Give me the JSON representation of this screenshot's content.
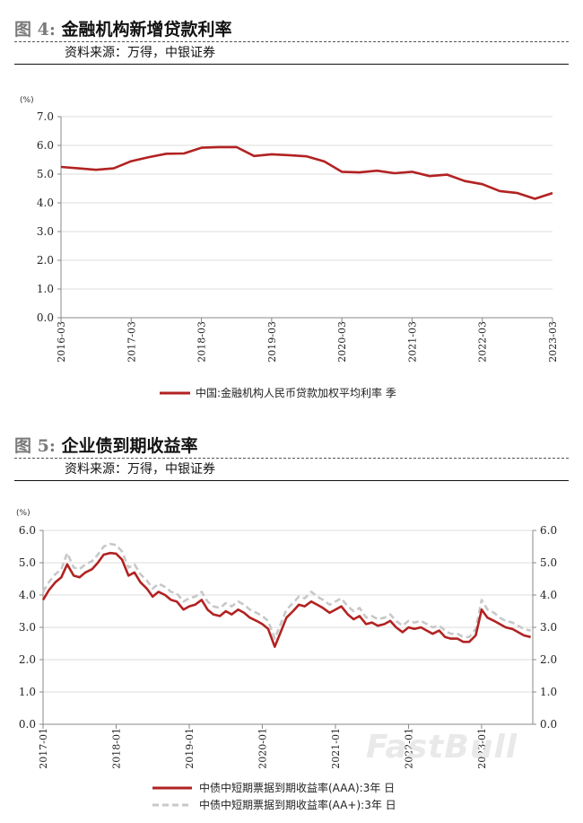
{
  "figure4": {
    "number": "图 4:",
    "title": "金融机构新增贷款利率",
    "source": "资料来源：万得，中银证券",
    "chart_data": {
      "type": "line",
      "ylabel": "(%)",
      "ylim": [
        0,
        7
      ],
      "yticks": [
        "0.0",
        "1.0",
        "2.0",
        "3.0",
        "4.0",
        "5.0",
        "6.0",
        "7.0"
      ],
      "xticks": [
        "2016-03",
        "2017-03",
        "2018-03",
        "2019-03",
        "2020-03",
        "2021-03",
        "2022-03",
        "2023-03"
      ],
      "x_start": 2016.167,
      "x_end": 2023.167,
      "grid": true,
      "legend_position": "bottom",
      "series": [
        {
          "name": "中国:金融机构人民币贷款加权平均利率 季",
          "color": "#b22222",
          "x": [
            2016.167,
            2016.417,
            2016.667,
            2016.917,
            2017.167,
            2017.417,
            2017.667,
            2017.917,
            2018.167,
            2018.417,
            2018.667,
            2018.917,
            2019.167,
            2019.417,
            2019.667,
            2019.917,
            2020.167,
            2020.417,
            2020.667,
            2020.917,
            2021.167,
            2021.417,
            2021.667,
            2021.917,
            2022.167,
            2022.417,
            2022.667,
            2022.917,
            2023.167
          ],
          "values": [
            5.25,
            5.2,
            5.15,
            5.2,
            5.45,
            5.59,
            5.71,
            5.72,
            5.92,
            5.94,
            5.94,
            5.63,
            5.69,
            5.66,
            5.62,
            5.44,
            5.08,
            5.06,
            5.12,
            5.03,
            5.08,
            4.93,
            4.98,
            4.76,
            4.65,
            4.41,
            4.34,
            4.14,
            4.34
          ]
        }
      ]
    }
  },
  "figure5": {
    "number": "图 5:",
    "title": "企业债到期收益率",
    "source": "资料来源：万得，中银证券",
    "chart_data": {
      "type": "line",
      "ylabel": "(%)",
      "ylim": [
        0,
        6
      ],
      "yticks": [
        "0.0",
        "1.0",
        "2.0",
        "3.0",
        "4.0",
        "5.0",
        "6.0"
      ],
      "y2ticks": [
        "0.0",
        "1.0",
        "2.0",
        "3.0",
        "4.0",
        "5.0",
        "6.0"
      ],
      "xticks": [
        "2017-01",
        "2018-01",
        "2019-01",
        "2020-01",
        "2021-01",
        "2022-01",
        "2023-01"
      ],
      "x_start": 2017.0,
      "x_end": 2023.7,
      "grid": true,
      "legend_position": "bottom",
      "series": [
        {
          "name": "中债中短期票据到期收益率(AAA):3年  日",
          "color": "#b22222",
          "style": "solid",
          "x": [
            2017.0,
            2017.08,
            2017.17,
            2017.25,
            2017.33,
            2017.42,
            2017.5,
            2017.58,
            2017.67,
            2017.75,
            2017.83,
            2017.92,
            2018.0,
            2018.08,
            2018.17,
            2018.25,
            2018.33,
            2018.42,
            2018.5,
            2018.58,
            2018.67,
            2018.75,
            2018.83,
            2018.92,
            2019.0,
            2019.08,
            2019.17,
            2019.25,
            2019.33,
            2019.42,
            2019.5,
            2019.58,
            2019.67,
            2019.75,
            2019.83,
            2019.92,
            2020.0,
            2020.08,
            2020.17,
            2020.25,
            2020.33,
            2020.42,
            2020.5,
            2020.58,
            2020.67,
            2020.75,
            2020.83,
            2020.92,
            2021.0,
            2021.08,
            2021.17,
            2021.25,
            2021.33,
            2021.42,
            2021.5,
            2021.58,
            2021.67,
            2021.75,
            2021.83,
            2021.92,
            2022.0,
            2022.08,
            2022.17,
            2022.25,
            2022.33,
            2022.42,
            2022.5,
            2022.58,
            2022.67,
            2022.75,
            2022.83,
            2022.92,
            2023.0,
            2023.08,
            2023.17,
            2023.25,
            2023.33,
            2023.42,
            2023.5,
            2023.58,
            2023.67
          ],
          "values": [
            3.85,
            4.15,
            4.4,
            4.55,
            4.95,
            4.6,
            4.55,
            4.7,
            4.8,
            5.0,
            5.25,
            5.3,
            5.28,
            5.1,
            4.6,
            4.7,
            4.4,
            4.2,
            3.95,
            4.1,
            4.0,
            3.85,
            3.8,
            3.55,
            3.65,
            3.7,
            3.85,
            3.55,
            3.4,
            3.35,
            3.5,
            3.4,
            3.55,
            3.45,
            3.3,
            3.2,
            3.1,
            2.95,
            2.4,
            2.85,
            3.3,
            3.5,
            3.7,
            3.65,
            3.8,
            3.7,
            3.6,
            3.45,
            3.55,
            3.65,
            3.4,
            3.25,
            3.35,
            3.1,
            3.15,
            3.05,
            3.1,
            3.2,
            3.0,
            2.85,
            3.0,
            2.95,
            3.0,
            2.9,
            2.8,
            2.9,
            2.7,
            2.65,
            2.65,
            2.55,
            2.55,
            2.75,
            3.55,
            3.3,
            3.2,
            3.1,
            3.0,
            2.95,
            2.85,
            2.75,
            2.7
          ]
        },
        {
          "name": "中债中短期票据到期收益率(AA+):3年  日",
          "color": "#c8c8c8",
          "style": "dashed",
          "x": [
            2017.0,
            2017.08,
            2017.17,
            2017.25,
            2017.33,
            2017.42,
            2017.5,
            2017.58,
            2017.67,
            2017.75,
            2017.83,
            2017.92,
            2018.0,
            2018.08,
            2018.17,
            2018.25,
            2018.33,
            2018.42,
            2018.5,
            2018.58,
            2018.67,
            2018.75,
            2018.83,
            2018.92,
            2019.0,
            2019.08,
            2019.17,
            2019.25,
            2019.33,
            2019.42,
            2019.5,
            2019.58,
            2019.67,
            2019.75,
            2019.83,
            2019.92,
            2020.0,
            2020.08,
            2020.17,
            2020.25,
            2020.33,
            2020.42,
            2020.5,
            2020.58,
            2020.67,
            2020.75,
            2020.83,
            2020.92,
            2021.0,
            2021.08,
            2021.17,
            2021.25,
            2021.33,
            2021.42,
            2021.5,
            2021.58,
            2021.67,
            2021.75,
            2021.83,
            2021.92,
            2022.0,
            2022.08,
            2022.17,
            2022.25,
            2022.33,
            2022.42,
            2022.5,
            2022.58,
            2022.67,
            2022.75,
            2022.83,
            2022.92,
            2023.0,
            2023.08,
            2023.17,
            2023.25,
            2023.33,
            2023.42,
            2023.5,
            2023.58,
            2023.67
          ],
          "values": [
            4.1,
            4.4,
            4.65,
            4.8,
            5.3,
            4.85,
            4.8,
            4.95,
            5.05,
            5.25,
            5.5,
            5.58,
            5.55,
            5.35,
            4.85,
            4.95,
            4.65,
            4.45,
            4.2,
            4.35,
            4.25,
            4.1,
            4.05,
            3.8,
            3.9,
            3.95,
            4.1,
            3.8,
            3.65,
            3.6,
            3.75,
            3.65,
            3.8,
            3.7,
            3.55,
            3.45,
            3.35,
            3.2,
            2.65,
            3.1,
            3.55,
            3.75,
            3.95,
            3.9,
            4.1,
            3.95,
            3.85,
            3.7,
            3.8,
            3.9,
            3.65,
            3.5,
            3.6,
            3.3,
            3.35,
            3.25,
            3.3,
            3.4,
            3.2,
            3.05,
            3.2,
            3.15,
            3.2,
            3.1,
            3.0,
            3.05,
            2.9,
            2.8,
            2.8,
            2.7,
            2.7,
            2.95,
            3.85,
            3.55,
            3.45,
            3.3,
            3.2,
            3.15,
            3.05,
            2.95,
            2.9
          ]
        }
      ]
    }
  }
}
